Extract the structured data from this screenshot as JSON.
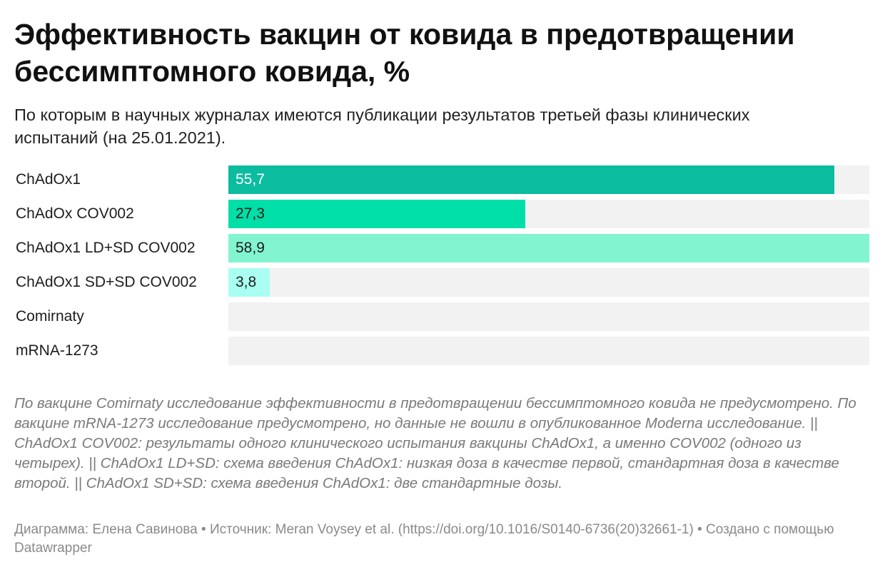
{
  "chart_data": {
    "type": "bar",
    "orientation": "horizontal",
    "title": "Эффективность вакцин от ковида в предотвращении бессимптомного ковида, %",
    "subtitle": "По которым в научных журналах имеются публикации результатов третьей фазы клинических испытаний (на 25.01.2021).",
    "categories": [
      "ChAdOx1",
      "ChAdOx COV002",
      "ChAdOx1 LD+SD COV002",
      "ChAdOx1 SD+SD COV002",
      "Comirnaty",
      "mRNA-1273"
    ],
    "values": [
      55.7,
      27.3,
      58.9,
      3.8,
      null,
      null
    ],
    "value_labels": [
      "55,7",
      "27,3",
      "58,9",
      "3,8",
      "",
      ""
    ],
    "colors": [
      "#0bbc9f",
      "#00dfa7",
      "#82f5d0",
      "#a8fff2",
      "#f2f2f2",
      "#f2f2f2"
    ],
    "value_label_colors": [
      "#ffffff",
      "#1d1d1d",
      "#1d1d1d",
      "#1d1d1d",
      "#1d1d1d",
      "#1d1d1d"
    ],
    "xlim": [
      0,
      58.9
    ],
    "track_color": "#f2f2f2",
    "notes": "По вакцине Comirnaty исследование эффективности в предотвращении бессимптомного ковида не предусмотрено. По вакцине mRNA-1273 исследование предусмотрено, но данные не вошли в опубликованное Moderna исследование. || ChAdOx1 COV002: результаты одного клинического испытания вакцины ChAdOx1, а именно COV002 (одного из четырех). || ChAdOx1 LD+SD: схема введения ChAdOx1: низкая доза в качестве первой, стандартная доза в качестве второй. || ChAdOx1 SD+SD: схема введения ChAdOx1: две стандартные дозы.",
    "footer": "Диаграмма: Елена Савинова • Источник: Meran Voysey et al. (https://doi.org/10.1016/S0140-6736(20)32661-1) • Создано с помощью Datawrapper"
  }
}
